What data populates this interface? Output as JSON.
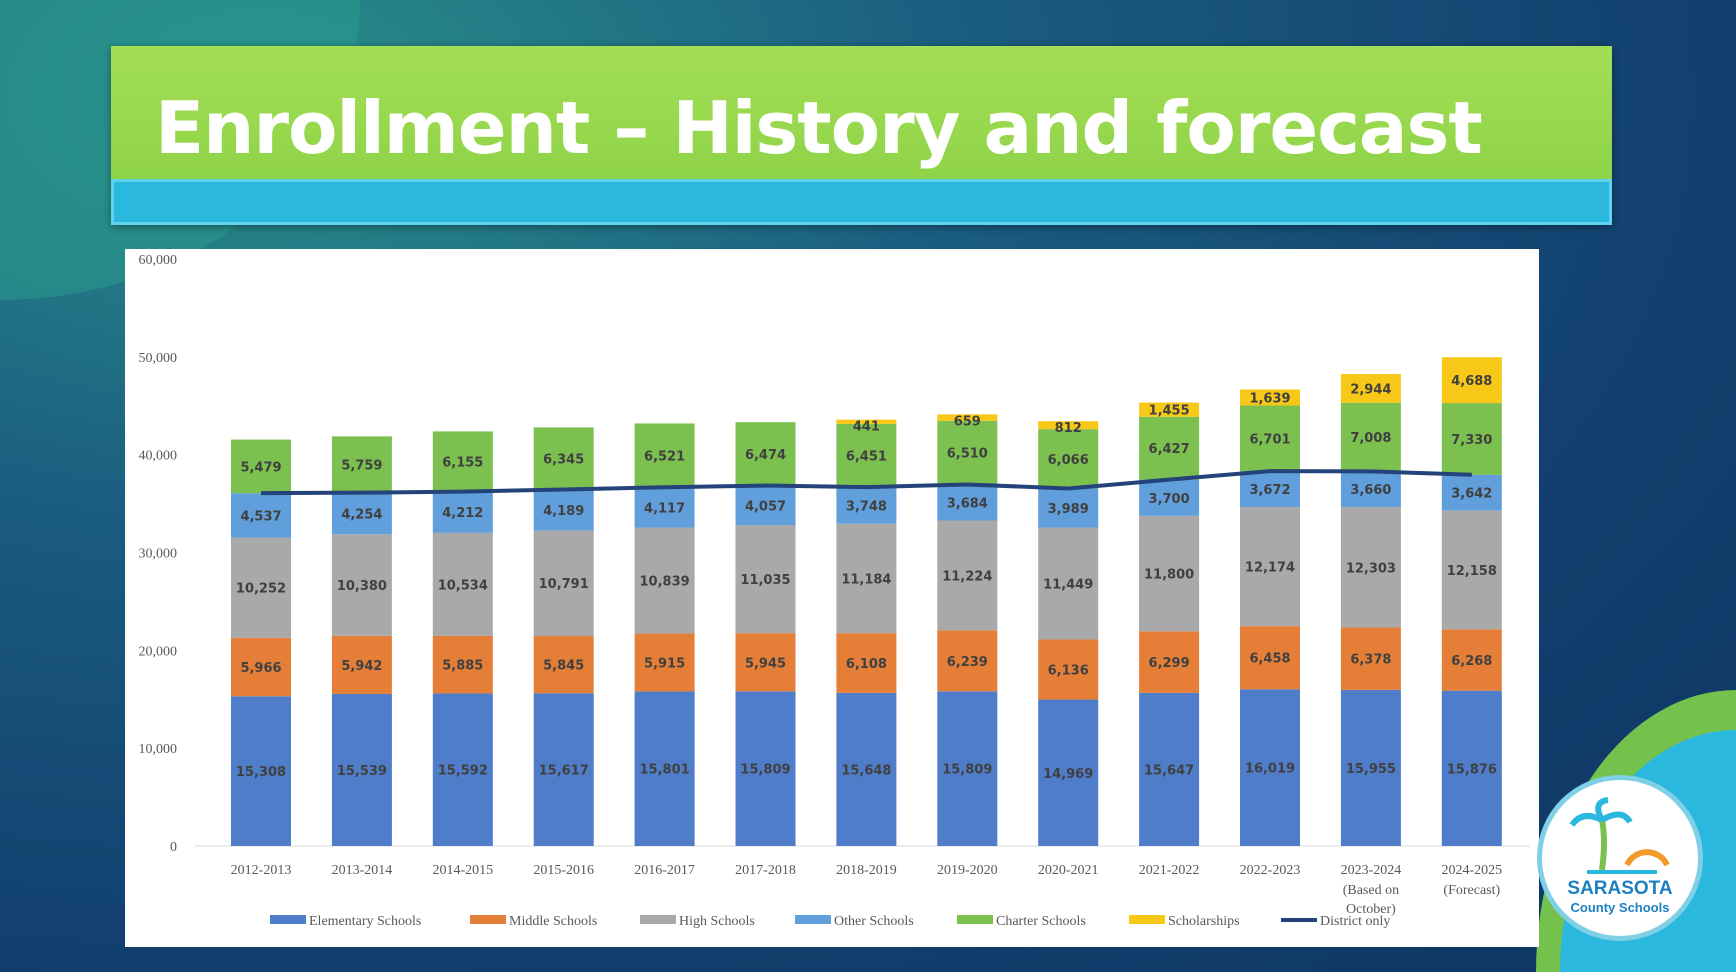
{
  "slide": {
    "title": "Enrollment – History and forecast"
  },
  "logo": {
    "line1": "SARASOTA",
    "line2": "County Schools"
  },
  "chart_data": {
    "type": "bar",
    "stacked": true,
    "categories": [
      "2012-2013",
      "2013-2014",
      "2014-2015",
      "2015-2016",
      "2016-2017",
      "2017-2018",
      "2018-2019",
      "2019-2020",
      "2020-2021",
      "2021-2022",
      "2022-2023",
      "2023-2024 (Based on October)",
      "2024-2025 (Forecast)"
    ],
    "ylim": [
      0,
      60000
    ],
    "yticks": [
      0,
      10000,
      20000,
      30000,
      40000,
      50000,
      60000
    ],
    "ytick_labels": [
      "0",
      "10,000",
      "20,000",
      "30,000",
      "40,000",
      "50,000",
      "60,000"
    ],
    "grid": false,
    "legend_position": "bottom",
    "series": [
      {
        "name": "Elementary Schools",
        "color": "#4f7dc9",
        "values": [
          15308,
          15539,
          15592,
          15617,
          15801,
          15809,
          15648,
          15809,
          14969,
          15647,
          16019,
          15955,
          15876
        ]
      },
      {
        "name": "Middle Schools",
        "color": "#e57f38",
        "values": [
          5966,
          5942,
          5885,
          5845,
          5915,
          5945,
          6108,
          6239,
          6136,
          6299,
          6458,
          6378,
          6268
        ]
      },
      {
        "name": "High Schools",
        "color": "#a9a9a9",
        "values": [
          10252,
          10380,
          10534,
          10791,
          10839,
          11035,
          11184,
          11224,
          11449,
          11800,
          12174,
          12303,
          12158
        ]
      },
      {
        "name": "Other Schools",
        "color": "#609fdb",
        "values": [
          4537,
          4254,
          4212,
          4189,
          4117,
          4057,
          3748,
          3684,
          3989,
          3700,
          3672,
          3660,
          3642
        ]
      },
      {
        "name": "Charter Schools",
        "color": "#7cc150",
        "values": [
          5479,
          5759,
          6155,
          6345,
          6521,
          6474,
          6451,
          6510,
          6066,
          6427,
          6701,
          7008,
          7330
        ]
      },
      {
        "name": "Scholarships",
        "color": "#f7c817",
        "values": [
          null,
          null,
          null,
          null,
          null,
          null,
          441,
          659,
          812,
          1455,
          1639,
          2944,
          4688
        ]
      }
    ],
    "line": {
      "name": "District only",
      "color": "#24437a",
      "values": [
        36063,
        36115,
        36223,
        36442,
        36672,
        36846,
        36688,
        36956,
        36543,
        37446,
        38323,
        38296,
        37944
      ]
    }
  }
}
